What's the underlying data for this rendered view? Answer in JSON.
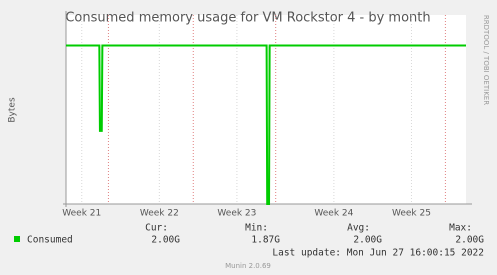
{
  "chart_data": {
    "type": "line",
    "title": "Consumed memory usage for VM Rockstor 4 - by month",
    "y_label": "Bytes",
    "side_text": "RRDTOOL / TOBI OETIKER",
    "x": [
      0,
      2.75,
      2.8,
      2.95,
      3.0,
      16.55,
      16.6,
      16.75,
      16.8,
      33
    ],
    "series": [
      {
        "name": "Consumed",
        "color": "#00cc00",
        "values": [
          2000000000,
          2000000000,
          1930000000,
          1930000000,
          2000000000,
          2000000000,
          1870000000,
          1870000000,
          2000000000,
          2000000000
        ]
      }
    ],
    "xlim": [
      0,
      33
    ],
    "ylim": [
      1870000000,
      2025000000
    ],
    "xticks": [
      {
        "value": 1.3,
        "label": "Week 21"
      },
      {
        "value": 7.7,
        "label": "Week 22"
      },
      {
        "value": 14.1,
        "label": "Week 23"
      },
      {
        "value": 22.1,
        "label": "Week 24"
      },
      {
        "value": 28.5,
        "label": "Week 25"
      }
    ],
    "month_lines": [
      3.5,
      10.5,
      17.3,
      31.3
    ],
    "month_line_color": "#e08080",
    "stats": [
      {
        "label": "Cur:",
        "value": "2.00G"
      },
      {
        "label": "Min:",
        "value": "1.87G"
      },
      {
        "label": "Avg:",
        "value": "2.00G"
      },
      {
        "label": "Max:",
        "value": "2.00G"
      }
    ],
    "last_update": "Last update: Mon Jun 27 16:00:15 2022",
    "footer": "Munin 2.0.69"
  }
}
